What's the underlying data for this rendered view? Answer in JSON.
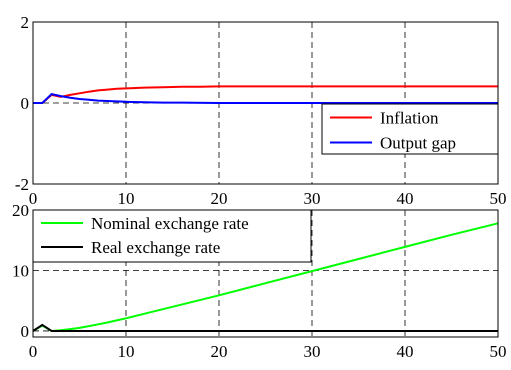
{
  "chart_data": [
    {
      "type": "line",
      "title": "",
      "xlabel": "",
      "ylabel": "",
      "xlim": [
        0,
        50
      ],
      "ylim": [
        -2,
        2
      ],
      "x_ticks": [
        "0",
        "10",
        "20",
        "30",
        "40",
        "50"
      ],
      "y_ticks": [
        "-2",
        "0",
        "2"
      ],
      "grid": "dashed",
      "legend_position": "bottom-right",
      "series": [
        {
          "name": "Inflation",
          "color": "#ff0000",
          "points": [
            [
              0,
              0
            ],
            [
              1,
              0
            ],
            [
              2,
              0.2
            ],
            [
              3,
              0.15
            ],
            [
              4,
              0.2
            ],
            [
              5,
              0.24
            ],
            [
              6,
              0.28
            ],
            [
              7,
              0.31
            ],
            [
              8,
              0.33
            ],
            [
              9,
              0.35
            ],
            [
              10,
              0.36
            ],
            [
              12,
              0.38
            ],
            [
              14,
              0.39
            ],
            [
              16,
              0.4
            ],
            [
              18,
              0.4
            ],
            [
              20,
              0.41
            ],
            [
              25,
              0.41
            ],
            [
              30,
              0.41
            ],
            [
              40,
              0.41
            ],
            [
              50,
              0.41
            ]
          ]
        },
        {
          "name": "Output gap",
          "color": "#0000ff",
          "points": [
            [
              0,
              0
            ],
            [
              1,
              0
            ],
            [
              2,
              0.22
            ],
            [
              3,
              0.17
            ],
            [
              4,
              0.13
            ],
            [
              5,
              0.1
            ],
            [
              6,
              0.08
            ],
            [
              7,
              0.06
            ],
            [
              8,
              0.05
            ],
            [
              9,
              0.04
            ],
            [
              10,
              0.03
            ],
            [
              12,
              0.02
            ],
            [
              14,
              0.01
            ],
            [
              16,
              0.01
            ],
            [
              20,
              0
            ],
            [
              30,
              0
            ],
            [
              40,
              0
            ],
            [
              50,
              0
            ]
          ]
        }
      ]
    },
    {
      "type": "line",
      "title": "",
      "xlabel": "",
      "ylabel": "",
      "xlim": [
        0,
        50
      ],
      "ylim": [
        -1,
        20
      ],
      "x_ticks": [
        "0",
        "10",
        "20",
        "30",
        "40",
        "50"
      ],
      "y_ticks": [
        "0",
        "10",
        "20"
      ],
      "grid": "dashed",
      "legend_position": "top-left",
      "series": [
        {
          "name": "Nominal exchange rate",
          "color": "#00ff00",
          "points": [
            [
              0,
              0
            ],
            [
              1,
              0.9
            ],
            [
              2,
              0
            ],
            [
              3,
              0.1
            ],
            [
              4,
              0.3
            ],
            [
              5,
              0.5
            ],
            [
              6,
              0.8
            ],
            [
              7,
              1.1
            ],
            [
              8,
              1.4
            ],
            [
              9,
              1.75
            ],
            [
              10,
              2.1
            ],
            [
              12,
              2.85
            ],
            [
              15,
              4.0
            ],
            [
              20,
              5.9
            ],
            [
              25,
              7.9
            ],
            [
              30,
              9.9
            ],
            [
              35,
              11.9
            ],
            [
              40,
              13.9
            ],
            [
              45,
              15.9
            ],
            [
              50,
              17.8
            ]
          ]
        },
        {
          "name": "Real exchange rate",
          "color": "#000000",
          "points": [
            [
              0,
              0
            ],
            [
              1,
              1
            ],
            [
              2,
              0
            ],
            [
              3,
              0
            ],
            [
              10,
              0
            ],
            [
              20,
              0
            ],
            [
              30,
              0
            ],
            [
              40,
              0
            ],
            [
              50,
              0
            ]
          ]
        }
      ]
    }
  ]
}
